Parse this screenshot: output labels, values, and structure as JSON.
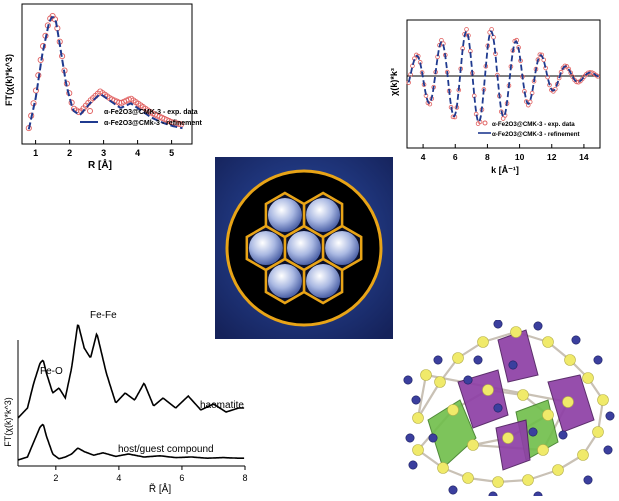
{
  "chart_data": [
    {
      "type": "line",
      "ylabel": "FT(χ(k)*k^3)",
      "xlabel": "R [Å]",
      "xlim": [
        0.6,
        5.6
      ],
      "xticks": [
        1,
        2,
        3,
        4,
        5
      ],
      "grid": false,
      "legend_position": "bottom-right",
      "series": [
        {
          "name": "α-Fe2O3@CMK-3 - exp. data",
          "style": "open circles",
          "color": "#e06060",
          "x": [
            0.8,
            1.0,
            1.2,
            1.4,
            1.5,
            1.6,
            1.7,
            1.9,
            2.1,
            2.3,
            2.6,
            2.9,
            3.2,
            3.5,
            3.8,
            4.1,
            4.4,
            4.7,
            5.0,
            5.3
          ],
          "y": [
            0.05,
            0.35,
            0.72,
            0.97,
            1.0,
            0.96,
            0.8,
            0.45,
            0.22,
            0.18,
            0.28,
            0.36,
            0.3,
            0.26,
            0.3,
            0.24,
            0.18,
            0.14,
            0.1,
            0.08
          ]
        },
        {
          "name": "α-Fe2O3@CMk-3 - refinement",
          "style": "line",
          "color": "#1f3a8f",
          "x": [
            0.8,
            1.0,
            1.2,
            1.4,
            1.5,
            1.6,
            1.7,
            1.9,
            2.1,
            2.3,
            2.6,
            2.9,
            3.2,
            3.5,
            3.8,
            4.1,
            4.4,
            4.7,
            5.0,
            5.3
          ],
          "y": [
            0.04,
            0.3,
            0.68,
            0.95,
            1.0,
            0.95,
            0.78,
            0.42,
            0.2,
            0.16,
            0.26,
            0.34,
            0.28,
            0.22,
            0.26,
            0.2,
            0.14,
            0.1,
            0.07,
            0.05
          ]
        }
      ]
    },
    {
      "type": "line",
      "ylabel": "χ(k)*k³",
      "xlabel": "k [Å⁻¹]",
      "xlim": [
        3,
        15
      ],
      "xticks": [
        4,
        6,
        8,
        10,
        12,
        14
      ],
      "grid": false,
      "legend_position": "bottom-right",
      "series": [
        {
          "name": "α-Fe2O3@CMK-3 - exp. data",
          "style": "open circles",
          "color": "#e06060",
          "envelope": "oscillation"
        },
        {
          "name": "α-Fe2O3@CMK-3 - refinement",
          "style": "line",
          "color": "#1f3a8f",
          "envelope": "oscillation"
        }
      ]
    },
    {
      "type": "line",
      "ylabel": "FT(χ(k)*k^3)",
      "xlabel": "R̃ [Å]",
      "xlim": [
        0.8,
        8
      ],
      "xticks": [
        2,
        4,
        6,
        8
      ],
      "grid": false,
      "annotations": [
        "Fe-O",
        "Fe-Fe"
      ],
      "series": [
        {
          "name": "haematite",
          "color": "#000000",
          "x": [
            0.8,
            1.1,
            1.3,
            1.5,
            1.6,
            1.7,
            1.9,
            2.1,
            2.3,
            2.5,
            2.7,
            2.9,
            3.1,
            3.3,
            3.6,
            3.9,
            4.2,
            4.5,
            4.8,
            5.1,
            5.4,
            5.8,
            6.2,
            6.6,
            7.0,
            7.4,
            7.8
          ],
          "y": [
            0.0,
            0.1,
            0.35,
            0.55,
            0.58,
            0.45,
            0.25,
            0.3,
            0.2,
            0.5,
            0.95,
            0.7,
            0.6,
            0.85,
            0.45,
            0.15,
            0.25,
            0.18,
            0.35,
            0.12,
            0.2,
            0.1,
            0.22,
            0.08,
            0.14,
            0.06,
            0.1
          ]
        },
        {
          "name": "host/guest compound",
          "color": "#000000",
          "x": [
            0.8,
            1.1,
            1.3,
            1.5,
            1.6,
            1.7,
            1.9,
            2.1,
            2.3,
            2.5,
            2.7,
            2.9,
            3.2,
            3.5,
            3.9,
            4.3,
            4.8,
            5.3,
            5.8,
            6.3,
            6.8,
            7.3,
            7.8
          ],
          "y": [
            0.0,
            0.05,
            0.3,
            0.55,
            0.6,
            0.4,
            0.1,
            0.02,
            0.05,
            0.1,
            0.2,
            0.14,
            0.08,
            0.12,
            0.06,
            0.1,
            0.05,
            0.07,
            0.04,
            0.05,
            0.03,
            0.04,
            0.03
          ]
        }
      ]
    }
  ],
  "center_icon": {
    "name": "honeycomb-icon",
    "bg_color": "#1f2f6e",
    "ring_color": "#e8a417"
  },
  "structure_model": {
    "name": "crystal-structure-icon",
    "colors": {
      "octahedra_a": "#8e3fa6",
      "octahedra_b": "#6fbe4a",
      "atom_large": "#f0ea6a",
      "atom_small": "#3b3f9e"
    }
  }
}
